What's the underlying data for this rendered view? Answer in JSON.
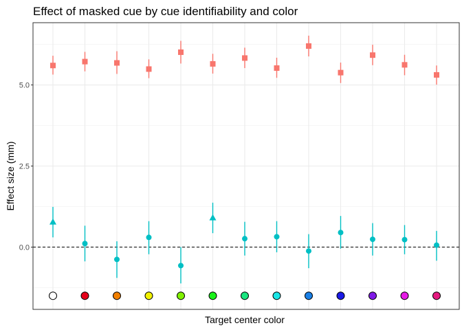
{
  "chart_data": {
    "type": "scatter",
    "title": "Effect of masked cue by cue identifiability and color",
    "xlabel": "Target center color",
    "ylabel": "Effect size (mm)",
    "ylim": [
      -1.92,
      6.92
    ],
    "yticks": [
      0.0,
      2.5,
      5.0
    ],
    "ytick_labels": [
      "0.0",
      "2.5",
      "5.0"
    ],
    "reference_line": 0,
    "grid": true,
    "legend": "none",
    "categories": [
      "c1",
      "c2",
      "c3",
      "c4",
      "c5",
      "c6",
      "c7",
      "c8",
      "c9",
      "c10",
      "c11",
      "c12",
      "c13"
    ],
    "category_colors": [
      "#FFFFFF",
      "#E6001A",
      "#F28000",
      "#F2F200",
      "#80F200",
      "#1AF21A",
      "#1AE680",
      "#1AE6E6",
      "#1A80E6",
      "#1A1AE6",
      "#801AE6",
      "#E61AE6",
      "#E61A80"
    ],
    "category_marker_y": -1.5,
    "series": [
      {
        "color": "#F8766D",
        "shape": "square",
        "values": [
          5.6,
          5.72,
          5.68,
          5.49,
          6.01,
          5.65,
          5.83,
          5.52,
          6.2,
          5.38,
          5.92,
          5.62,
          5.31
        ],
        "lower": [
          5.32,
          5.42,
          5.34,
          5.21,
          5.66,
          5.35,
          5.52,
          5.22,
          5.88,
          5.06,
          5.61,
          5.3,
          5.01
        ],
        "upper": [
          5.9,
          6.02,
          6.04,
          5.79,
          6.36,
          5.96,
          6.15,
          5.84,
          6.52,
          5.69,
          6.24,
          5.93,
          5.6
        ]
      },
      {
        "color": "#00BFC4",
        "shapes": [
          "triangle",
          "circle",
          "circle",
          "circle",
          "circle",
          "triangle",
          "circle",
          "circle",
          "circle",
          "circle",
          "circle",
          "circle",
          "circle"
        ],
        "values": [
          0.77,
          0.11,
          -0.38,
          0.3,
          -0.57,
          0.9,
          0.26,
          0.32,
          -0.12,
          0.45,
          0.24,
          0.23,
          0.06
        ],
        "lower": [
          0.3,
          -0.44,
          -0.95,
          -0.22,
          -1.12,
          0.43,
          -0.26,
          -0.16,
          -0.65,
          -0.05,
          -0.26,
          -0.22,
          -0.42
        ],
        "upper": [
          1.24,
          0.66,
          0.18,
          0.8,
          0.0,
          1.37,
          0.78,
          0.8,
          0.4,
          0.96,
          0.74,
          0.68,
          0.5
        ]
      }
    ]
  }
}
